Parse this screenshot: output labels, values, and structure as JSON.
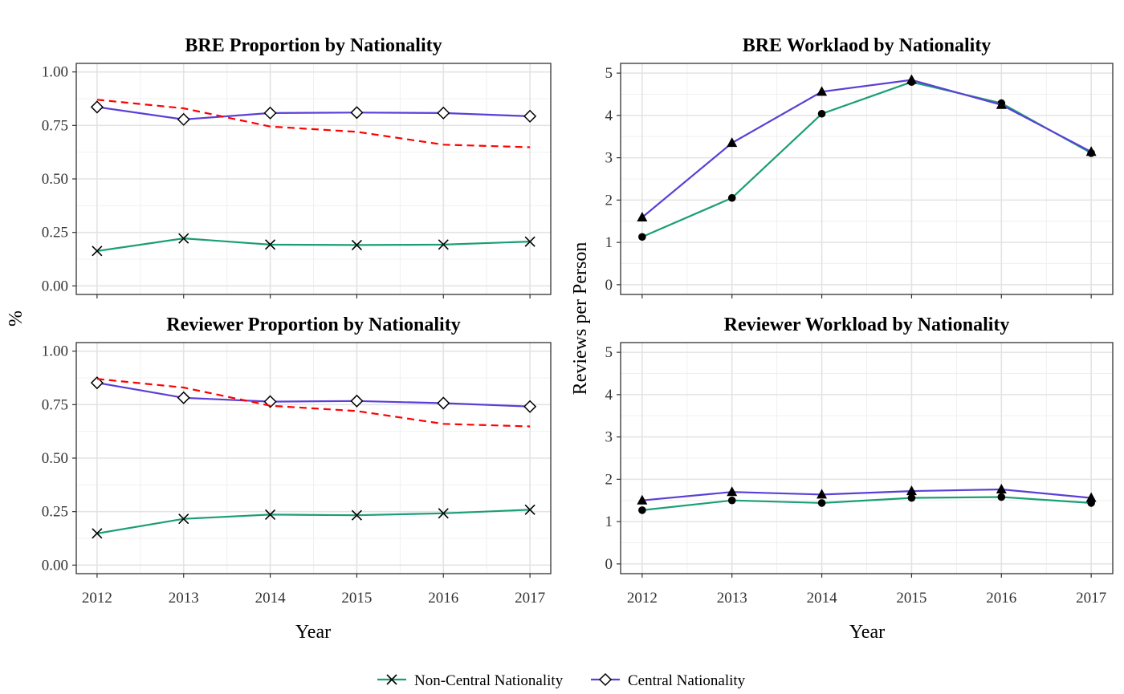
{
  "chart_data": [
    {
      "type": "line",
      "title": "BRE Proportion by Nationality",
      "ylabel": "%",
      "xlabel": "",
      "x": [
        2012,
        2013,
        2014,
        2015,
        2016,
        2017
      ],
      "ylim": [
        -0.04,
        1.04
      ],
      "yticks": [
        "0.00",
        "0.25",
        "0.50",
        "0.75",
        "1.00"
      ],
      "series": [
        {
          "name": "Non-Central Nationality",
          "values": [
            0.163,
            0.222,
            0.193,
            0.191,
            0.193,
            0.207
          ],
          "color": "#1b9e77",
          "marker": "x"
        },
        {
          "name": "Central Nationality",
          "values": [
            0.836,
            0.778,
            0.808,
            0.81,
            0.808,
            0.793
          ],
          "color": "#5b3fd6",
          "marker": "diamond"
        },
        {
          "values": [
            0.87,
            0.83,
            0.745,
            0.72,
            0.66,
            0.648
          ],
          "color": "#ff0000",
          "dash": true
        }
      ],
      "grid": true
    },
    {
      "type": "line",
      "title": "BRE Worklaod by Nationality",
      "ylabel": "Reviews per Person",
      "xlabel": "",
      "x": [
        2012,
        2013,
        2014,
        2015,
        2016,
        2017
      ],
      "ylim": [
        -0.23,
        5.23
      ],
      "yticks": [
        "0",
        "1",
        "2",
        "3",
        "4",
        "5"
      ],
      "series": [
        {
          "name": "Non-Central Nationality",
          "values": [
            1.13,
            2.05,
            4.04,
            4.79,
            4.29,
            3.11
          ],
          "color": "#1b9e77",
          "marker": "dot"
        },
        {
          "name": "Central Nationality",
          "values": [
            1.59,
            3.35,
            4.56,
            4.84,
            4.25,
            3.14
          ],
          "color": "#5b3fd6",
          "marker": "triangle"
        }
      ],
      "grid": true
    },
    {
      "type": "line",
      "title": "Reviewer Proportion by Nationality",
      "ylabel": "%",
      "xlabel": "Year",
      "x": [
        2012,
        2013,
        2014,
        2015,
        2016,
        2017
      ],
      "ylim": [
        -0.04,
        1.04
      ],
      "yticks": [
        "0.00",
        "0.25",
        "0.50",
        "0.75",
        "1.00"
      ],
      "series": [
        {
          "name": "Non-Central Nationality",
          "values": [
            0.148,
            0.216,
            0.236,
            0.233,
            0.242,
            0.259
          ],
          "color": "#1b9e77",
          "marker": "x"
        },
        {
          "name": "Central Nationality",
          "values": [
            0.852,
            0.782,
            0.764,
            0.767,
            0.757,
            0.741
          ],
          "color": "#5b3fd6",
          "marker": "diamond"
        },
        {
          "values": [
            0.87,
            0.83,
            0.745,
            0.72,
            0.66,
            0.648
          ],
          "color": "#ff0000",
          "dash": true
        }
      ],
      "grid": true
    },
    {
      "type": "line",
      "title": "Reviewer Workload by Nationality",
      "ylabel": "Reviews per Person",
      "xlabel": "Year",
      "x": [
        2012,
        2013,
        2014,
        2015,
        2016,
        2017
      ],
      "ylim": [
        -0.23,
        5.23
      ],
      "yticks": [
        "0",
        "1",
        "2",
        "3",
        "4",
        "5"
      ],
      "series": [
        {
          "name": "Non-Central Nationality",
          "values": [
            1.27,
            1.5,
            1.44,
            1.56,
            1.58,
            1.44
          ],
          "color": "#1b9e77",
          "marker": "dot"
        },
        {
          "name": "Central Nationality",
          "values": [
            1.5,
            1.7,
            1.64,
            1.72,
            1.76,
            1.56
          ],
          "color": "#5b3fd6",
          "marker": "triangle"
        }
      ],
      "grid": true
    }
  ],
  "labels": {
    "y_left": "%",
    "y_right": "Reviews per Person",
    "x_left": "Year",
    "x_right": "Year"
  },
  "xticks": [
    "2012",
    "2013",
    "2014",
    "2015",
    "2016",
    "2017"
  ],
  "legend": {
    "placement": "bottom",
    "items": [
      {
        "label": "Non-Central Nationality",
        "color": "#1b9e77",
        "marker": "x"
      },
      {
        "label": "Central Nationality",
        "color": "#5b3fd6",
        "marker": "diamond"
      }
    ]
  }
}
